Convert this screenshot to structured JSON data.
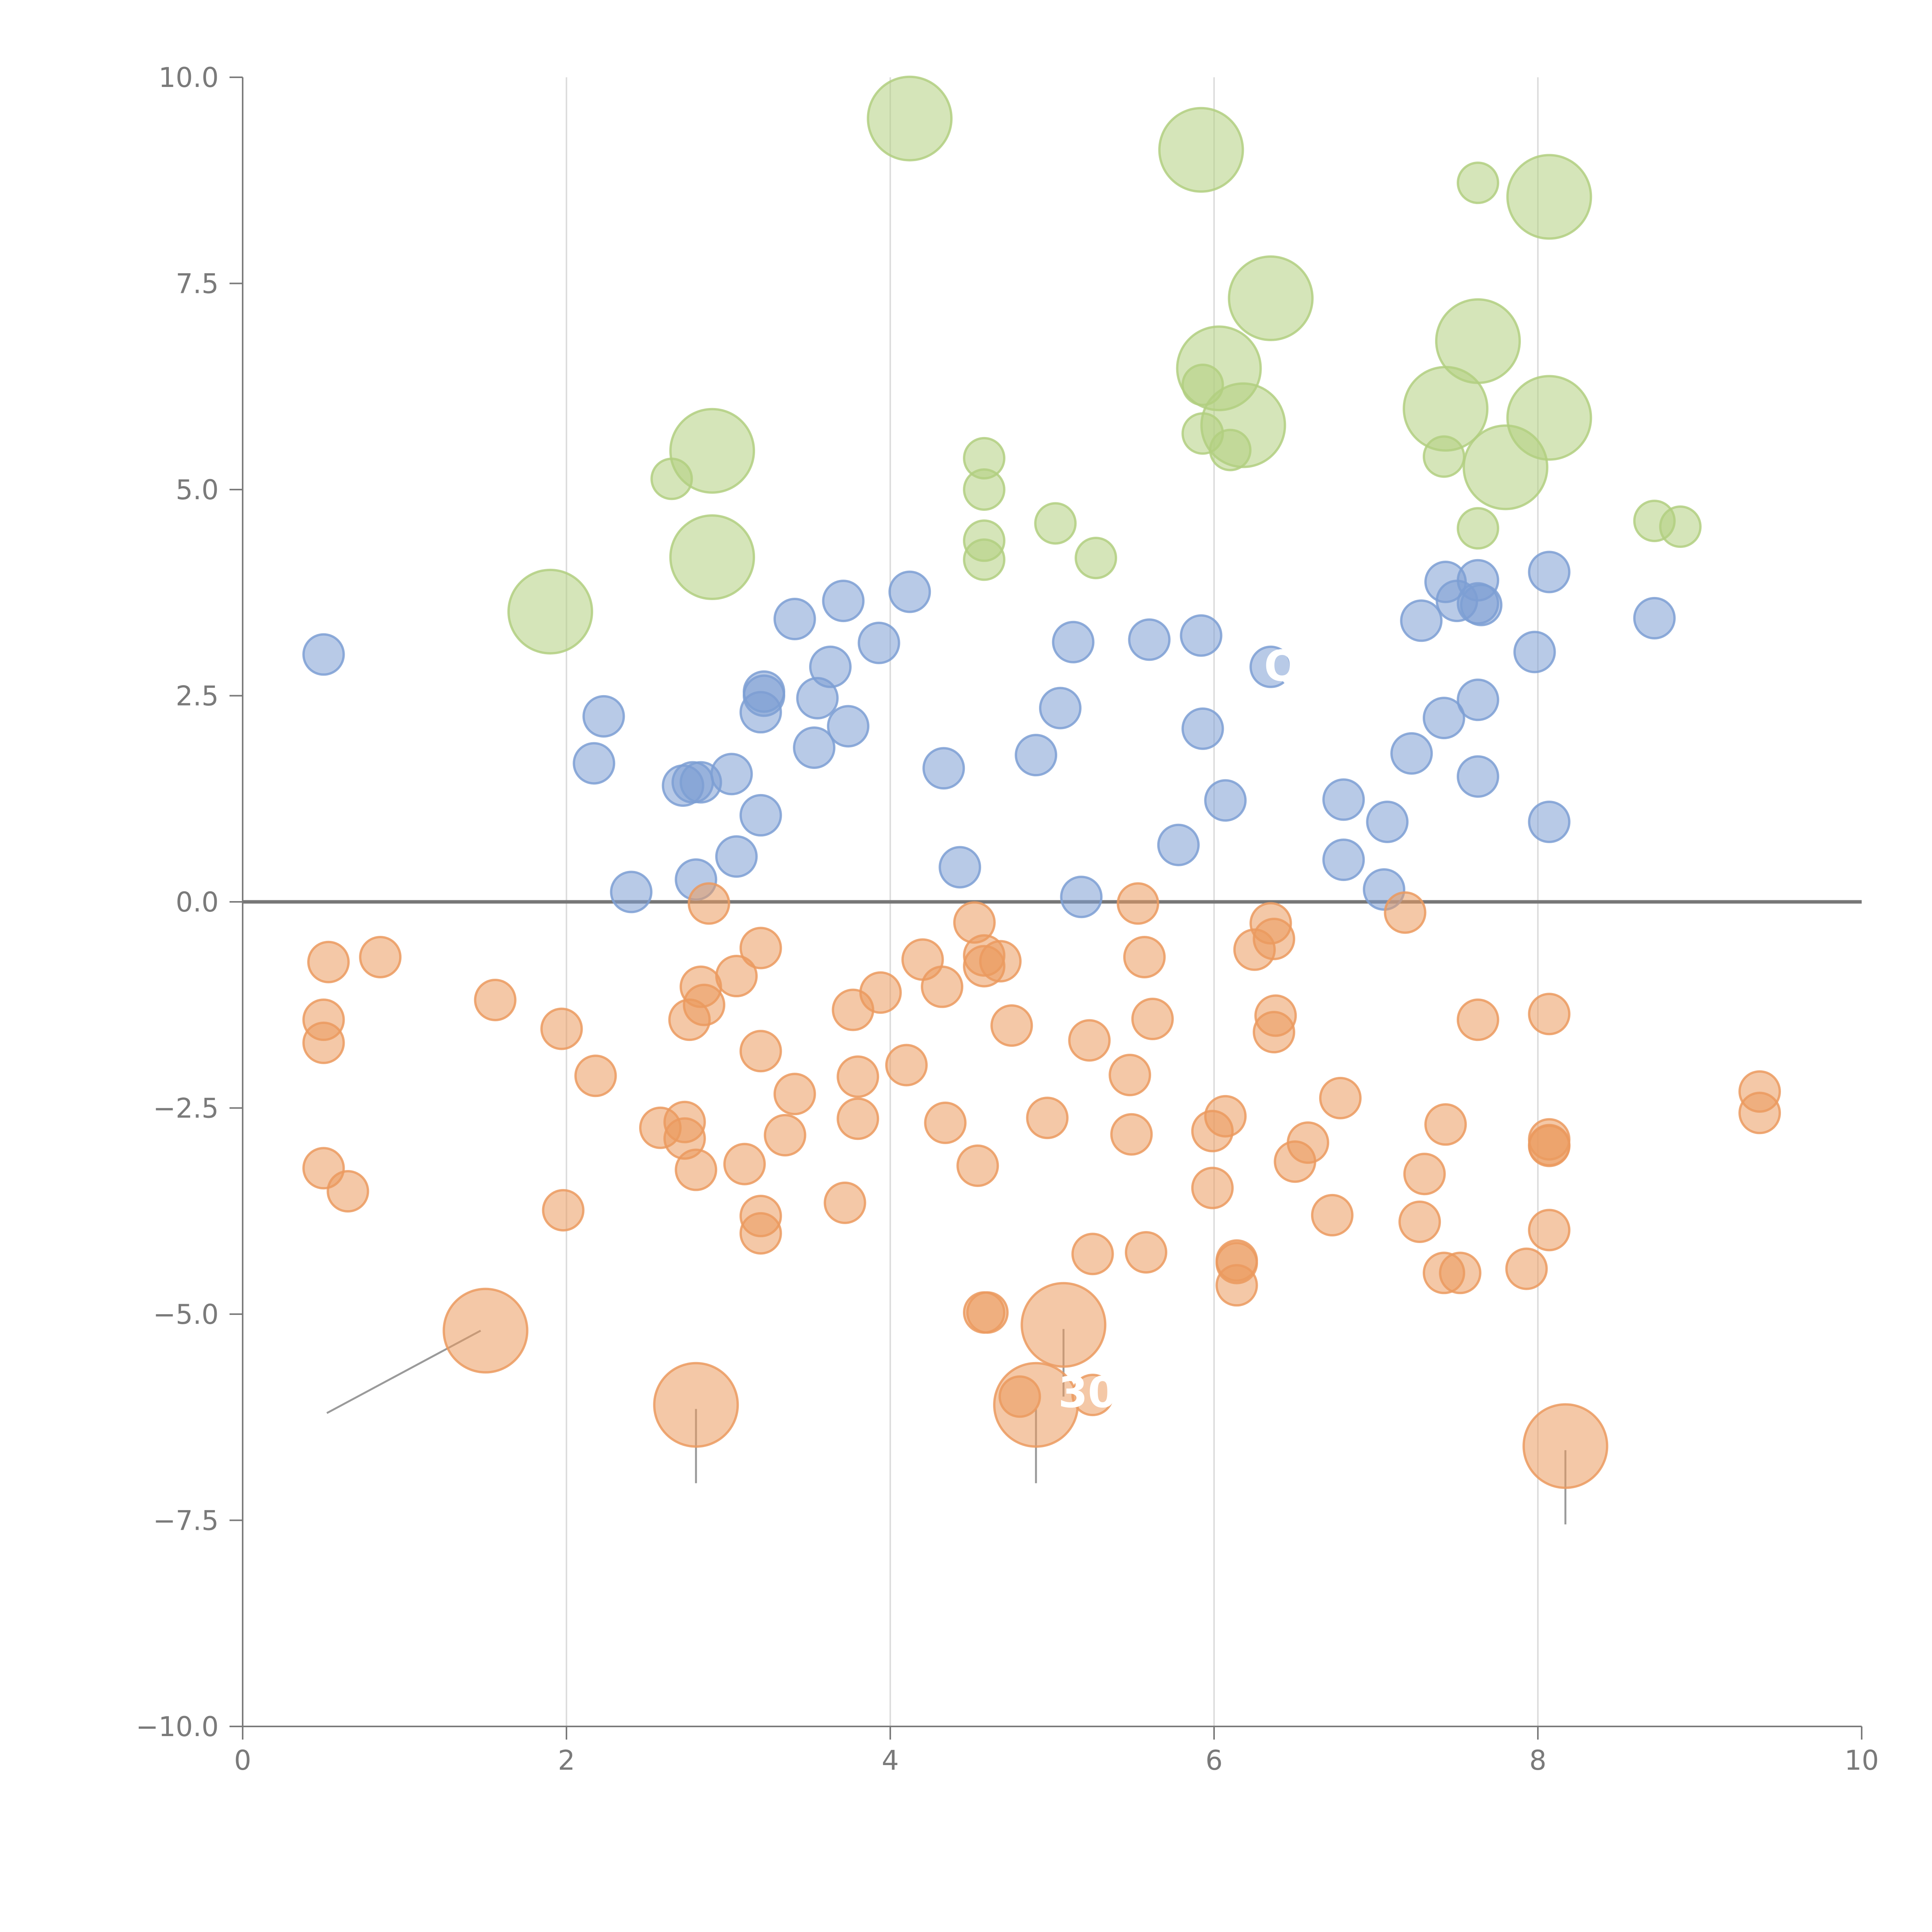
{
  "chart_data": {
    "type": "scatter",
    "title": "",
    "xlabel": "",
    "ylabel": "",
    "xlim": [
      0,
      10
    ],
    "ylim": [
      -10,
      10
    ],
    "x_ticks": [
      0,
      2,
      4,
      6,
      8,
      10
    ],
    "x_tick_labels": [
      "0",
      "2",
      "4",
      "6",
      "8",
      "10"
    ],
    "y_ticks": [
      -10,
      -7.5,
      -5,
      -2.5,
      0,
      2.5,
      5,
      7.5,
      10
    ],
    "y_tick_labels": [
      "−10.0",
      "−7.5",
      "−5.0",
      "−2.5",
      "0.0",
      "2.5",
      "5.0",
      "7.5",
      "10.0"
    ],
    "vertical_gridlines": [
      2,
      4,
      6,
      8
    ],
    "zero_line": 0,
    "colors": {
      "blue": "#7d9fd3",
      "orange": "#eb9a5f",
      "green": "#b2cf80",
      "axis": "#7a7a7a",
      "zero_line": "#777777",
      "grid": "#dddddd",
      "leader": "#9a9a9a"
    },
    "series": [
      {
        "name": "blue",
        "color": "#7d9fd3",
        "size": 1,
        "points": [
          [
            0.5,
            3.0
          ],
          [
            2.17,
            1.68
          ],
          [
            2.23,
            2.25
          ],
          [
            2.4,
            0.12
          ],
          [
            2.72,
            1.41
          ],
          [
            2.78,
            1.45
          ],
          [
            2.8,
            0.27
          ],
          [
            2.83,
            1.45
          ],
          [
            3.02,
            1.55
          ],
          [
            3.05,
            0.55
          ],
          [
            3.2,
            2.3
          ],
          [
            3.2,
            1.05
          ],
          [
            3.22,
            2.5
          ],
          [
            3.22,
            2.55
          ],
          [
            3.41,
            3.43
          ],
          [
            3.53,
            1.87
          ],
          [
            3.55,
            2.47
          ],
          [
            3.63,
            2.85
          ],
          [
            3.71,
            3.65
          ],
          [
            3.74,
            2.13
          ],
          [
            3.93,
            3.14
          ],
          [
            4.12,
            3.76
          ],
          [
            4.33,
            1.62
          ],
          [
            4.43,
            0.42
          ],
          [
            4.9,
            1.78
          ],
          [
            5.05,
            2.35
          ],
          [
            5.13,
            3.15
          ],
          [
            5.18,
            0.06
          ],
          [
            5.6,
            3.18
          ],
          [
            5.78,
            0.69
          ],
          [
            5.92,
            3.23
          ],
          [
            5.93,
            2.1
          ],
          [
            6.07,
            1.23
          ],
          [
            6.35,
            2.85
          ],
          [
            6.8,
            1.24
          ],
          [
            6.8,
            0.51
          ],
          [
            7.05,
            0.15
          ],
          [
            7.07,
            0.97
          ],
          [
            7.22,
            1.8
          ],
          [
            7.28,
            3.41
          ],
          [
            7.42,
            2.23
          ],
          [
            7.43,
            3.88
          ],
          [
            7.5,
            3.65
          ],
          [
            7.63,
            3.9
          ],
          [
            7.63,
            3.62
          ],
          [
            7.63,
            2.45
          ],
          [
            7.63,
            1.52
          ],
          [
            7.65,
            3.6
          ],
          [
            7.98,
            3.03
          ],
          [
            8.07,
            4.0
          ],
          [
            8.07,
            0.97
          ],
          [
            8.72,
            3.44
          ]
        ]
      },
      {
        "name": "orange",
        "color": "#eb9a5f",
        "size": 1,
        "points": [
          [
            0.5,
            -1.43
          ],
          [
            0.5,
            -1.71
          ],
          [
            0.5,
            -3.23
          ],
          [
            0.53,
            -0.73
          ],
          [
            0.65,
            -3.51
          ],
          [
            0.85,
            -0.67
          ],
          [
            1.56,
            -1.19
          ],
          [
            1.97,
            -1.54
          ],
          [
            1.98,
            -3.74
          ],
          [
            2.18,
            -2.11
          ],
          [
            2.58,
            -2.74
          ],
          [
            2.73,
            -2.67
          ],
          [
            2.73,
            -2.87
          ],
          [
            2.76,
            -1.43
          ],
          [
            2.8,
            -3.25
          ],
          [
            2.83,
            -1.03
          ],
          [
            2.85,
            -1.25
          ],
          [
            2.88,
            -0.02
          ],
          [
            3.05,
            -0.9
          ],
          [
            3.1,
            -3.18
          ],
          [
            3.2,
            -0.56
          ],
          [
            3.2,
            -1.81
          ],
          [
            3.2,
            -3.81
          ],
          [
            3.2,
            -4.02
          ],
          [
            3.35,
            -2.83
          ],
          [
            3.41,
            -2.33
          ],
          [
            3.72,
            -3.65
          ],
          [
            3.77,
            -1.31
          ],
          [
            3.8,
            -2.12
          ],
          [
            3.8,
            -2.63
          ],
          [
            3.94,
            -1.1
          ],
          [
            4.1,
            -1.98
          ],
          [
            4.2,
            -0.7
          ],
          [
            4.32,
            -1.03
          ],
          [
            4.34,
            -2.68
          ],
          [
            4.52,
            -0.25
          ],
          [
            4.54,
            -3.2
          ],
          [
            4.58,
            -0.65
          ],
          [
            4.58,
            -0.78
          ],
          [
            4.58,
            -4.98
          ],
          [
            4.6,
            -4.98
          ],
          [
            4.68,
            -0.72
          ],
          [
            4.75,
            -1.5
          ],
          [
            4.8,
            -6.0
          ],
          [
            4.97,
            -2.62
          ],
          [
            5.23,
            -1.68
          ],
          [
            5.25,
            -4.27
          ],
          [
            5.25,
            -5.98
          ],
          [
            5.48,
            -2.1
          ],
          [
            5.49,
            -2.82
          ],
          [
            5.53,
            -0.02
          ],
          [
            5.57,
            -0.67
          ],
          [
            5.58,
            -4.25
          ],
          [
            5.62,
            -1.42
          ],
          [
            5.99,
            -2.78
          ],
          [
            5.99,
            -3.47
          ],
          [
            6.07,
            -2.6
          ],
          [
            6.14,
            -4.35
          ],
          [
            6.14,
            -4.38
          ],
          [
            6.14,
            -4.65
          ],
          [
            6.25,
            -0.58
          ],
          [
            6.35,
            -0.26
          ],
          [
            6.37,
            -0.45
          ],
          [
            6.37,
            -1.58
          ],
          [
            6.38,
            -1.38
          ],
          [
            6.5,
            -3.15
          ],
          [
            6.58,
            -2.92
          ],
          [
            6.73,
            -3.8
          ],
          [
            6.78,
            -2.38
          ],
          [
            7.18,
            -0.13
          ],
          [
            7.27,
            -3.88
          ],
          [
            7.3,
            -3.3
          ],
          [
            7.42,
            -4.5
          ],
          [
            7.43,
            -2.7
          ],
          [
            7.52,
            -4.5
          ],
          [
            7.63,
            -1.43
          ],
          [
            7.93,
            -4.45
          ],
          [
            8.07,
            -1.36
          ],
          [
            8.07,
            -2.88
          ],
          [
            8.07,
            -2.96
          ],
          [
            8.07,
            -2.95
          ],
          [
            8.07,
            -3.98
          ],
          [
            9.37,
            -2.3
          ],
          [
            9.37,
            -2.56
          ]
        ]
      },
      {
        "name": "green",
        "color": "#b2cf80",
        "size": 1,
        "points": [
          [
            2.65,
            5.13
          ],
          [
            4.58,
            5.38
          ],
          [
            4.58,
            5.0
          ],
          [
            4.58,
            4.38
          ],
          [
            4.58,
            4.15
          ],
          [
            5.02,
            4.59
          ],
          [
            5.27,
            4.17
          ],
          [
            5.93,
            6.27
          ],
          [
            5.93,
            5.68
          ],
          [
            6.1,
            5.48
          ],
          [
            7.42,
            5.4
          ],
          [
            7.63,
            8.72
          ],
          [
            7.63,
            4.53
          ],
          [
            8.72,
            4.62
          ],
          [
            8.88,
            4.55
          ]
        ]
      },
      {
        "name": "green-large",
        "color": "#b2cf80",
        "size": 2,
        "points": [
          [
            1.9,
            3.52
          ],
          [
            2.9,
            5.47
          ],
          [
            2.9,
            4.18
          ],
          [
            4.12,
            9.5
          ],
          [
            5.92,
            9.12
          ],
          [
            6.03,
            6.47
          ],
          [
            6.18,
            5.78
          ],
          [
            6.35,
            7.32
          ],
          [
            7.43,
            5.98
          ],
          [
            7.63,
            6.8
          ],
          [
            7.8,
            5.27
          ],
          [
            8.07,
            8.55
          ],
          [
            8.07,
            5.87
          ]
        ]
      },
      {
        "name": "orange-large",
        "color": "#eb9a5f",
        "size": 2,
        "points": [
          [
            1.5,
            -5.2
          ],
          [
            2.8,
            -6.1
          ],
          [
            4.9,
            -6.1
          ],
          [
            5.07,
            -5.13
          ],
          [
            8.17,
            -6.6
          ]
        ]
      }
    ],
    "annotations": [
      {
        "text": "Q",
        "x": 6.42,
        "y": 2.86
      },
      {
        "text": "30",
        "x": 5.22,
        "y": -5.95
      }
    ],
    "leader_lines": [
      {
        "from": [
          0.52,
          -6.2
        ],
        "to": [
          1.47,
          -5.2
        ]
      },
      {
        "from": [
          2.8,
          -7.05
        ],
        "to": [
          2.8,
          -6.15
        ]
      },
      {
        "from": [
          4.9,
          -7.05
        ],
        "to": [
          4.9,
          -6.15
        ]
      },
      {
        "from": [
          5.07,
          -6.0
        ],
        "to": [
          5.07,
          -5.18
        ]
      },
      {
        "from": [
          8.17,
          -7.55
        ],
        "to": [
          8.17,
          -6.65
        ]
      }
    ]
  }
}
